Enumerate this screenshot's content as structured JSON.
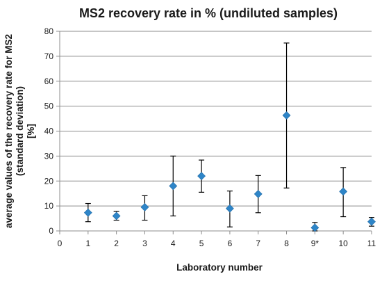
{
  "chart_data": {
    "type": "scatter",
    "title": "MS2 recovery rate in %  (undiluted samples)",
    "xlabel": "Laboratory number",
    "ylabel": "average values of the recovery rate for MS2 (standard deviation) [%]",
    "ylabel_lines": [
      "average values of the recovery rate for MS2",
      "(standard deviation)",
      "[%]"
    ],
    "xlim": [
      0,
      11
    ],
    "ylim": [
      0,
      80
    ],
    "x_ticks": [
      "0",
      "1",
      "2",
      "3",
      "4",
      "5",
      "6",
      "7",
      "8",
      "9*",
      "10",
      "11"
    ],
    "y_ticks": [
      "0",
      "10",
      "20",
      "30",
      "40",
      "50",
      "60",
      "70",
      "80"
    ],
    "grid": "horizontal",
    "marker": "diamond",
    "marker_color": "#2e85c8",
    "errorbar_color": "#000000",
    "points": [
      {
        "x": 1,
        "y": 7.3,
        "low": 3.7,
        "high": 11.0
      },
      {
        "x": 2,
        "y": 6.0,
        "low": 4.3,
        "high": 7.8
      },
      {
        "x": 3,
        "y": 9.5,
        "low": 4.3,
        "high": 14.1
      },
      {
        "x": 4,
        "y": 18.0,
        "low": 6.0,
        "high": 30.0
      },
      {
        "x": 5,
        "y": 22.0,
        "low": 15.5,
        "high": 28.4
      },
      {
        "x": 6,
        "y": 9.0,
        "low": 1.6,
        "high": 16.0
      },
      {
        "x": 7,
        "y": 14.8,
        "low": 7.3,
        "high": 22.2
      },
      {
        "x": 8,
        "y": 46.3,
        "low": 17.2,
        "high": 75.3
      },
      {
        "x": 9,
        "y": 1.3,
        "low": 0.0,
        "high": 3.4
      },
      {
        "x": 10,
        "y": 15.8,
        "low": 5.7,
        "high": 25.4
      },
      {
        "x": 11,
        "y": 3.7,
        "low": 1.9,
        "high": 5.4
      }
    ]
  }
}
